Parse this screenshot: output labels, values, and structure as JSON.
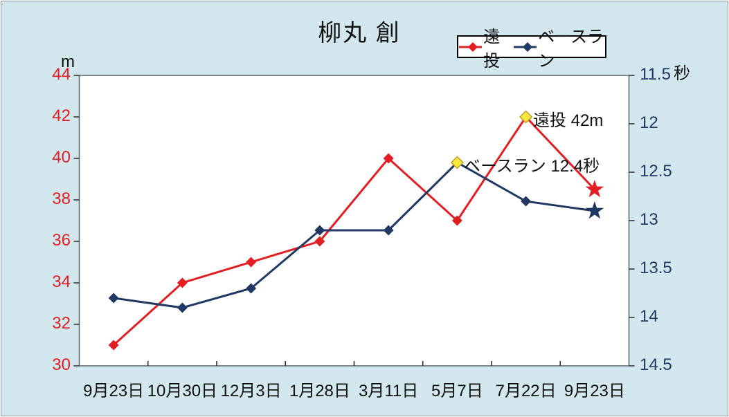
{
  "window": {
    "background": "#d2e7ee",
    "plot_background": "#ffffff",
    "frame_color": "#5f6b70"
  },
  "chart_data": {
    "type": "line",
    "title": "柳丸 創",
    "categories": [
      "9月23日",
      "10月30日",
      "12月3日",
      "1月28日",
      "3月11日",
      "5月7日",
      "7月22日",
      "9月23日"
    ],
    "series": [
      {
        "name": "遠投",
        "axis": "left",
        "color": "#e31e23",
        "marker": "diamond",
        "values": [
          31,
          34,
          35,
          36,
          40,
          37,
          42,
          38.5
        ],
        "special_markers": {
          "6": "yellow-diamond",
          "7": "star"
        }
      },
      {
        "name": "ベースラン",
        "axis": "right",
        "color": "#203864",
        "marker": "diamond",
        "values": [
          13.8,
          13.9,
          13.7,
          13.1,
          13.1,
          12.4,
          12.8,
          12.9
        ],
        "special_markers": {
          "5": "yellow-diamond",
          "7": "star"
        }
      }
    ],
    "left_axis": {
      "unit": "m",
      "min": 30,
      "max": 44,
      "step": 2,
      "tick_labels": [
        "44",
        "42",
        "40",
        "38",
        "36",
        "34",
        "32",
        "30"
      ],
      "color": "#e31e23"
    },
    "right_axis": {
      "unit": "秒",
      "min": 11.5,
      "max": 14.5,
      "step": 0.5,
      "inverted": true,
      "tick_labels": [
        "11.5",
        "12",
        "12.5",
        "13",
        "13.5",
        "14",
        "14.5"
      ],
      "color": "#203864"
    },
    "annotations": [
      {
        "text": "遠投 42m",
        "series": "遠投",
        "point_index": 6
      },
      {
        "text": "ベースラン 12.4秒",
        "series": "ベースラン",
        "point_index": 5
      }
    ],
    "legend": {
      "position": "top-right",
      "entries": [
        "遠投",
        "ベースラン"
      ]
    },
    "grid": false,
    "highlight_marker": {
      "fill": "#f6e939",
      "stroke": "#c8992a"
    }
  }
}
